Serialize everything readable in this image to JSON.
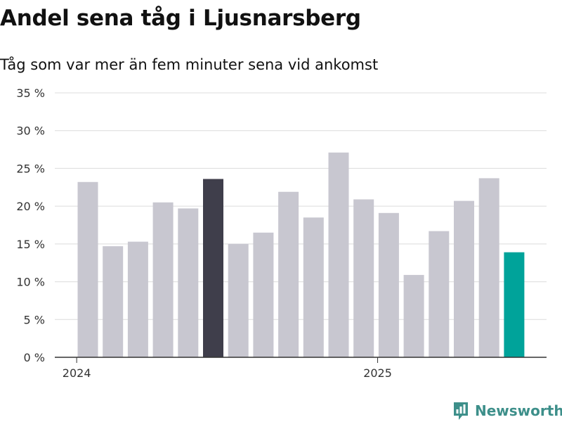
{
  "header": {
    "title": "Andel sena tåg i Ljusnarsberg",
    "subtitle": "Tåg som var mer än fem minuter sena vid ankomst"
  },
  "chart_data": {
    "type": "bar",
    "title": "Andel sena tåg i Ljusnarsberg",
    "subtitle": "Tåg som var mer än fem minuter sena vid ankomst",
    "xlabel": "",
    "ylabel": "",
    "y_tick_labels": [
      "0 %",
      "5 %",
      "10 %",
      "15 %",
      "20 %",
      "25 %",
      "30 %",
      "35 %"
    ],
    "y_ticks": [
      0,
      5,
      10,
      15,
      20,
      25,
      30,
      35
    ],
    "ylim": [
      0,
      35
    ],
    "x_tick_labels": [
      {
        "label": "2024",
        "month_index": 0
      },
      {
        "label": "2025",
        "month_index": 12
      }
    ],
    "grid": true,
    "legend": "none",
    "values": [
      23.2,
      14.7,
      15.3,
      20.5,
      19.7,
      23.6,
      15.0,
      16.5,
      21.9,
      18.5,
      27.1,
      20.9,
      19.1,
      10.9,
      16.7,
      20.7,
      23.7,
      13.9
    ],
    "bar_colors": [
      "#c8c7d0",
      "#c8c7d0",
      "#c8c7d0",
      "#c8c7d0",
      "#c8c7d0",
      "#3f3e4b",
      "#c8c7d0",
      "#c8c7d0",
      "#c8c7d0",
      "#c8c7d0",
      "#c8c7d0",
      "#c8c7d0",
      "#c8c7d0",
      "#c8c7d0",
      "#c8c7d0",
      "#c8c7d0",
      "#c8c7d0",
      "#00a39a"
    ]
  },
  "brand": {
    "name": "Newsworthy",
    "color": "#3d8f8a",
    "icon": "newsworthy-logo-icon"
  }
}
